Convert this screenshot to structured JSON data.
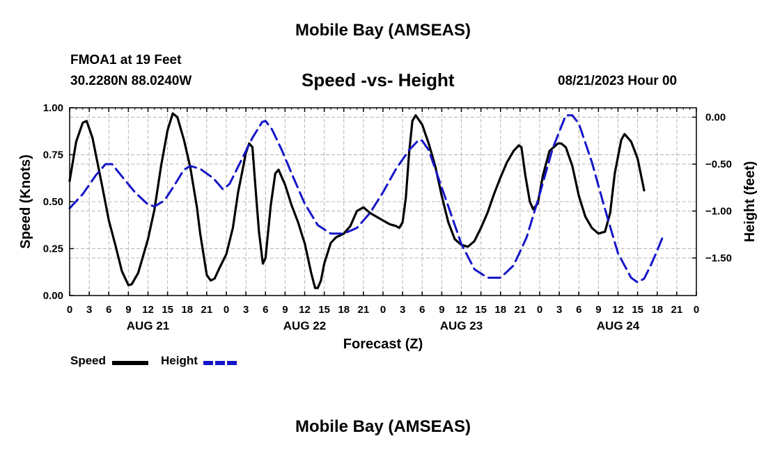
{
  "header": {
    "main_title": "Mobile Bay (AMSEAS)",
    "station_name": "FMOA1 at 19 Feet",
    "station_coords": "30.2280N  88.0240W",
    "sub_title": "Speed -vs- Height",
    "run_time": "08/21/2023 Hour 00"
  },
  "footer": {
    "repeated_title": "Mobile Bay (AMSEAS)"
  },
  "chart_data": {
    "type": "line",
    "title": "Speed -vs- Height",
    "xlabel": "Forecast (Z)",
    "ylabel": "Speed (Knots)",
    "y2label": "Height (feet)",
    "x_unit": "hours",
    "xlim": [
      0,
      96
    ],
    "ylim": [
      0,
      1
    ],
    "y2lim": [
      0.1,
      -1.9
    ],
    "x_ticks": [
      0,
      3,
      6,
      9,
      12,
      15,
      18,
      21,
      24,
      27,
      30,
      33,
      36,
      39,
      42,
      45,
      48,
      51,
      54,
      57,
      60,
      63,
      66,
      69,
      72,
      75,
      78,
      81,
      84,
      87,
      90,
      93,
      96
    ],
    "x_tick_labels": [
      "0",
      "3",
      "6",
      "9",
      "12",
      "15",
      "18",
      "21",
      "0",
      "3",
      "6",
      "9",
      "12",
      "15",
      "18",
      "21",
      "0",
      "3",
      "6",
      "9",
      "12",
      "15",
      "18",
      "21",
      "0",
      "3",
      "6",
      "9",
      "12",
      "15",
      "18",
      "21",
      "0"
    ],
    "day_labels": [
      {
        "at": 12,
        "label": "AUG 21"
      },
      {
        "at": 36,
        "label": "AUG 22"
      },
      {
        "at": 60,
        "label": "AUG 23"
      },
      {
        "at": 84,
        "label": "AUG 24"
      }
    ],
    "y_ticks": [
      0,
      0.25,
      0.5,
      0.75,
      1.0
    ],
    "y_tick_labels": [
      "0.00",
      "0.25",
      "0.50",
      "0.75",
      "1.00"
    ],
    "y2_ticks": [
      0,
      -0.5,
      -1.0,
      -1.5
    ],
    "y2_tick_labels": [
      "0.00",
      "−0.50",
      "−1.00",
      "−1.50"
    ],
    "grid": true,
    "legend_position": "bottom-left",
    "series": [
      {
        "name": "Speed",
        "axis": "left",
        "color": "#000000",
        "dash": "solid",
        "points": [
          [
            0,
            0.61
          ],
          [
            1,
            0.82
          ],
          [
            2,
            0.92
          ],
          [
            2.6,
            0.93
          ],
          [
            3.5,
            0.84
          ],
          [
            5,
            0.58
          ],
          [
            6,
            0.4
          ],
          [
            7,
            0.27
          ],
          [
            8,
            0.13
          ],
          [
            9,
            0.055
          ],
          [
            9.5,
            0.06
          ],
          [
            10.5,
            0.12
          ],
          [
            12,
            0.3
          ],
          [
            13,
            0.46
          ],
          [
            14,
            0.69
          ],
          [
            15,
            0.88
          ],
          [
            15.8,
            0.97
          ],
          [
            16.5,
            0.95
          ],
          [
            17.5,
            0.83
          ],
          [
            18.5,
            0.68
          ],
          [
            19.5,
            0.47
          ],
          [
            20,
            0.33
          ],
          [
            21,
            0.11
          ],
          [
            21.6,
            0.08
          ],
          [
            22.2,
            0.09
          ],
          [
            23,
            0.15
          ],
          [
            24,
            0.22
          ],
          [
            25,
            0.36
          ],
          [
            25.8,
            0.55
          ],
          [
            26.5,
            0.67
          ],
          [
            27,
            0.76
          ],
          [
            27.5,
            0.81
          ],
          [
            28,
            0.79
          ],
          [
            28.5,
            0.56
          ],
          [
            29,
            0.34
          ],
          [
            29.6,
            0.17
          ],
          [
            30,
            0.2
          ],
          [
            30.8,
            0.48
          ],
          [
            31.5,
            0.65
          ],
          [
            32,
            0.67
          ],
          [
            33,
            0.59
          ],
          [
            34,
            0.48
          ],
          [
            35,
            0.39
          ],
          [
            35.8,
            0.3
          ],
          [
            36,
            0.28
          ],
          [
            37,
            0.12
          ],
          [
            37.6,
            0.04
          ],
          [
            38,
            0.04
          ],
          [
            38.5,
            0.08
          ],
          [
            39,
            0.17
          ],
          [
            40,
            0.28
          ],
          [
            40.8,
            0.31
          ],
          [
            42,
            0.33
          ],
          [
            43,
            0.37
          ],
          [
            44,
            0.45
          ],
          [
            45,
            0.47
          ],
          [
            46,
            0.44
          ],
          [
            48,
            0.4
          ],
          [
            49,
            0.38
          ],
          [
            50,
            0.37
          ],
          [
            50.5,
            0.36
          ],
          [
            51,
            0.39
          ],
          [
            51.5,
            0.52
          ],
          [
            52,
            0.76
          ],
          [
            52.5,
            0.93
          ],
          [
            53,
            0.96
          ],
          [
            54,
            0.91
          ],
          [
            55,
            0.81
          ],
          [
            56,
            0.69
          ],
          [
            57,
            0.53
          ],
          [
            58,
            0.39
          ],
          [
            59,
            0.3
          ],
          [
            60,
            0.27
          ],
          [
            61,
            0.26
          ],
          [
            62,
            0.29
          ],
          [
            63,
            0.36
          ],
          [
            64,
            0.44
          ],
          [
            65,
            0.54
          ],
          [
            66,
            0.63
          ],
          [
            67,
            0.71
          ],
          [
            68,
            0.77
          ],
          [
            68.8,
            0.8
          ],
          [
            69.2,
            0.79
          ],
          [
            69.8,
            0.64
          ],
          [
            70.5,
            0.5
          ],
          [
            71,
            0.46
          ],
          [
            71.7,
            0.49
          ],
          [
            72.5,
            0.64
          ],
          [
            73.5,
            0.77
          ],
          [
            74.8,
            0.81
          ],
          [
            75.3,
            0.81
          ],
          [
            76,
            0.79
          ],
          [
            77,
            0.69
          ],
          [
            78,
            0.53
          ],
          [
            79,
            0.42
          ],
          [
            80,
            0.36
          ],
          [
            81,
            0.33
          ],
          [
            82,
            0.34
          ],
          [
            82.8,
            0.44
          ],
          [
            83.5,
            0.65
          ],
          [
            84.5,
            0.83
          ],
          [
            85,
            0.86
          ],
          [
            86,
            0.82
          ],
          [
            87,
            0.73
          ],
          [
            88,
            0.56
          ]
        ]
      },
      {
        "name": "Height",
        "axis": "right",
        "color": "#1515c8",
        "dash": "dashed",
        "points": [
          [
            0,
            -0.97
          ],
          [
            2,
            -0.82
          ],
          [
            4,
            -0.62
          ],
          [
            5.5,
            -0.5
          ],
          [
            6.5,
            -0.5
          ],
          [
            8,
            -0.63
          ],
          [
            10,
            -0.8
          ],
          [
            12,
            -0.93
          ],
          [
            13,
            -0.95
          ],
          [
            14.5,
            -0.89
          ],
          [
            16,
            -0.73
          ],
          [
            17.5,
            -0.56
          ],
          [
            18.5,
            -0.52
          ],
          [
            20,
            -0.55
          ],
          [
            22,
            -0.65
          ],
          [
            23.5,
            -0.77
          ],
          [
            24.5,
            -0.71
          ],
          [
            26,
            -0.5
          ],
          [
            28,
            -0.22
          ],
          [
            29.5,
            -0.05
          ],
          [
            30,
            -0.04
          ],
          [
            31,
            -0.13
          ],
          [
            32.5,
            -0.35
          ],
          [
            34,
            -0.6
          ],
          [
            36,
            -0.92
          ],
          [
            38,
            -1.15
          ],
          [
            40,
            -1.24
          ],
          [
            42,
            -1.24
          ],
          [
            44,
            -1.18
          ],
          [
            46,
            -1.02
          ],
          [
            48,
            -0.8
          ],
          [
            50,
            -0.55
          ],
          [
            52,
            -0.35
          ],
          [
            53.5,
            -0.24
          ],
          [
            54,
            -0.25
          ],
          [
            55,
            -0.35
          ],
          [
            56,
            -0.55
          ],
          [
            58,
            -0.95
          ],
          [
            60,
            -1.35
          ],
          [
            62,
            -1.62
          ],
          [
            64,
            -1.71
          ],
          [
            66,
            -1.71
          ],
          [
            68,
            -1.58
          ],
          [
            70,
            -1.28
          ],
          [
            72,
            -0.82
          ],
          [
            74,
            -0.33
          ],
          [
            76,
            0.02
          ],
          [
            77,
            0.02
          ],
          [
            78,
            -0.07
          ],
          [
            80,
            -0.48
          ],
          [
            82,
            -0.98
          ],
          [
            84,
            -1.45
          ],
          [
            86,
            -1.71
          ],
          [
            87,
            -1.76
          ],
          [
            88,
            -1.72
          ],
          [
            89,
            -1.58
          ],
          [
            90,
            -1.42
          ],
          [
            91,
            -1.25
          ]
        ]
      }
    ]
  },
  "legend": {
    "items": [
      {
        "label": "Speed",
        "color": "#000000",
        "dash": "solid"
      },
      {
        "label": "Height",
        "color": "#1515c8",
        "dash": "dashed"
      }
    ]
  }
}
